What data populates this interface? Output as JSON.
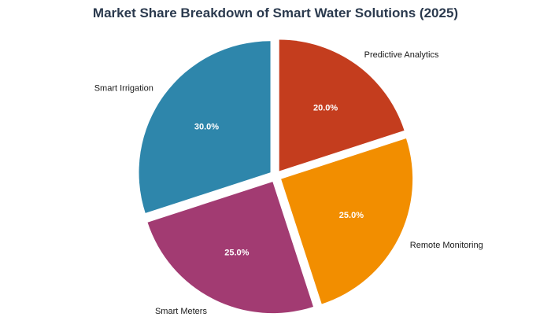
{
  "chart_data": {
    "type": "pie",
    "title": "Market Share Breakdown of Smart Water Solutions (2025)",
    "start_angle_deg": 90,
    "direction": "clockwise",
    "exploded": true,
    "legend": "none",
    "slices": [
      {
        "label": "Predictive Analytics",
        "value": 20.0,
        "pct_label": "20.0%",
        "color": "#c43d1e"
      },
      {
        "label": "Remote Monitoring",
        "value": 25.0,
        "pct_label": "25.0%",
        "color": "#f28e00"
      },
      {
        "label": "Smart Meters",
        "value": 25.0,
        "pct_label": "25.0%",
        "color": "#a23b72"
      },
      {
        "label": "Smart Irrigation",
        "value": 30.0,
        "pct_label": "30.0%",
        "color": "#2e86ab"
      }
    ]
  }
}
